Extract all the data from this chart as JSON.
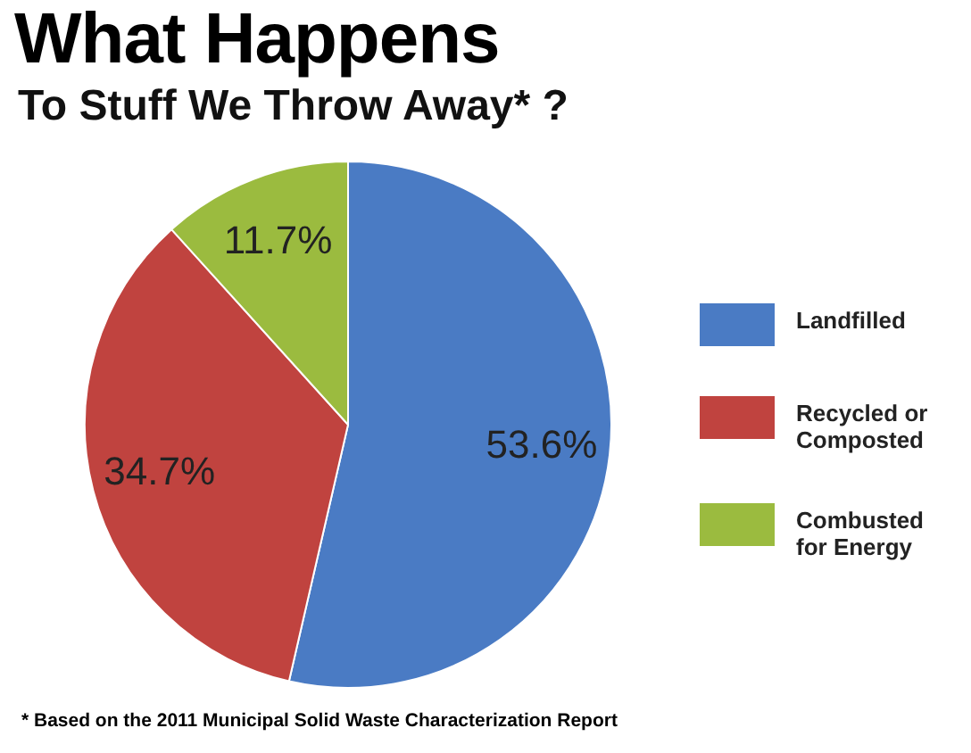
{
  "chart_data": {
    "type": "pie",
    "title": "What Happens",
    "subtitle": "To Stuff We Throw Away* ?",
    "categories": [
      "Landfilled",
      "Recycled or Composted",
      "Combusted for Energy"
    ],
    "values": [
      53.6,
      34.7,
      11.7
    ],
    "colors": [
      "#4a7bc4",
      "#c0433f",
      "#9bbb3f"
    ],
    "value_labels": [
      "53.6%",
      "34.7%",
      "11.7%"
    ],
    "legend": "right",
    "annotations": [
      "* Based on the 2011 Municipal Solid Waste Characterization Report"
    ]
  }
}
